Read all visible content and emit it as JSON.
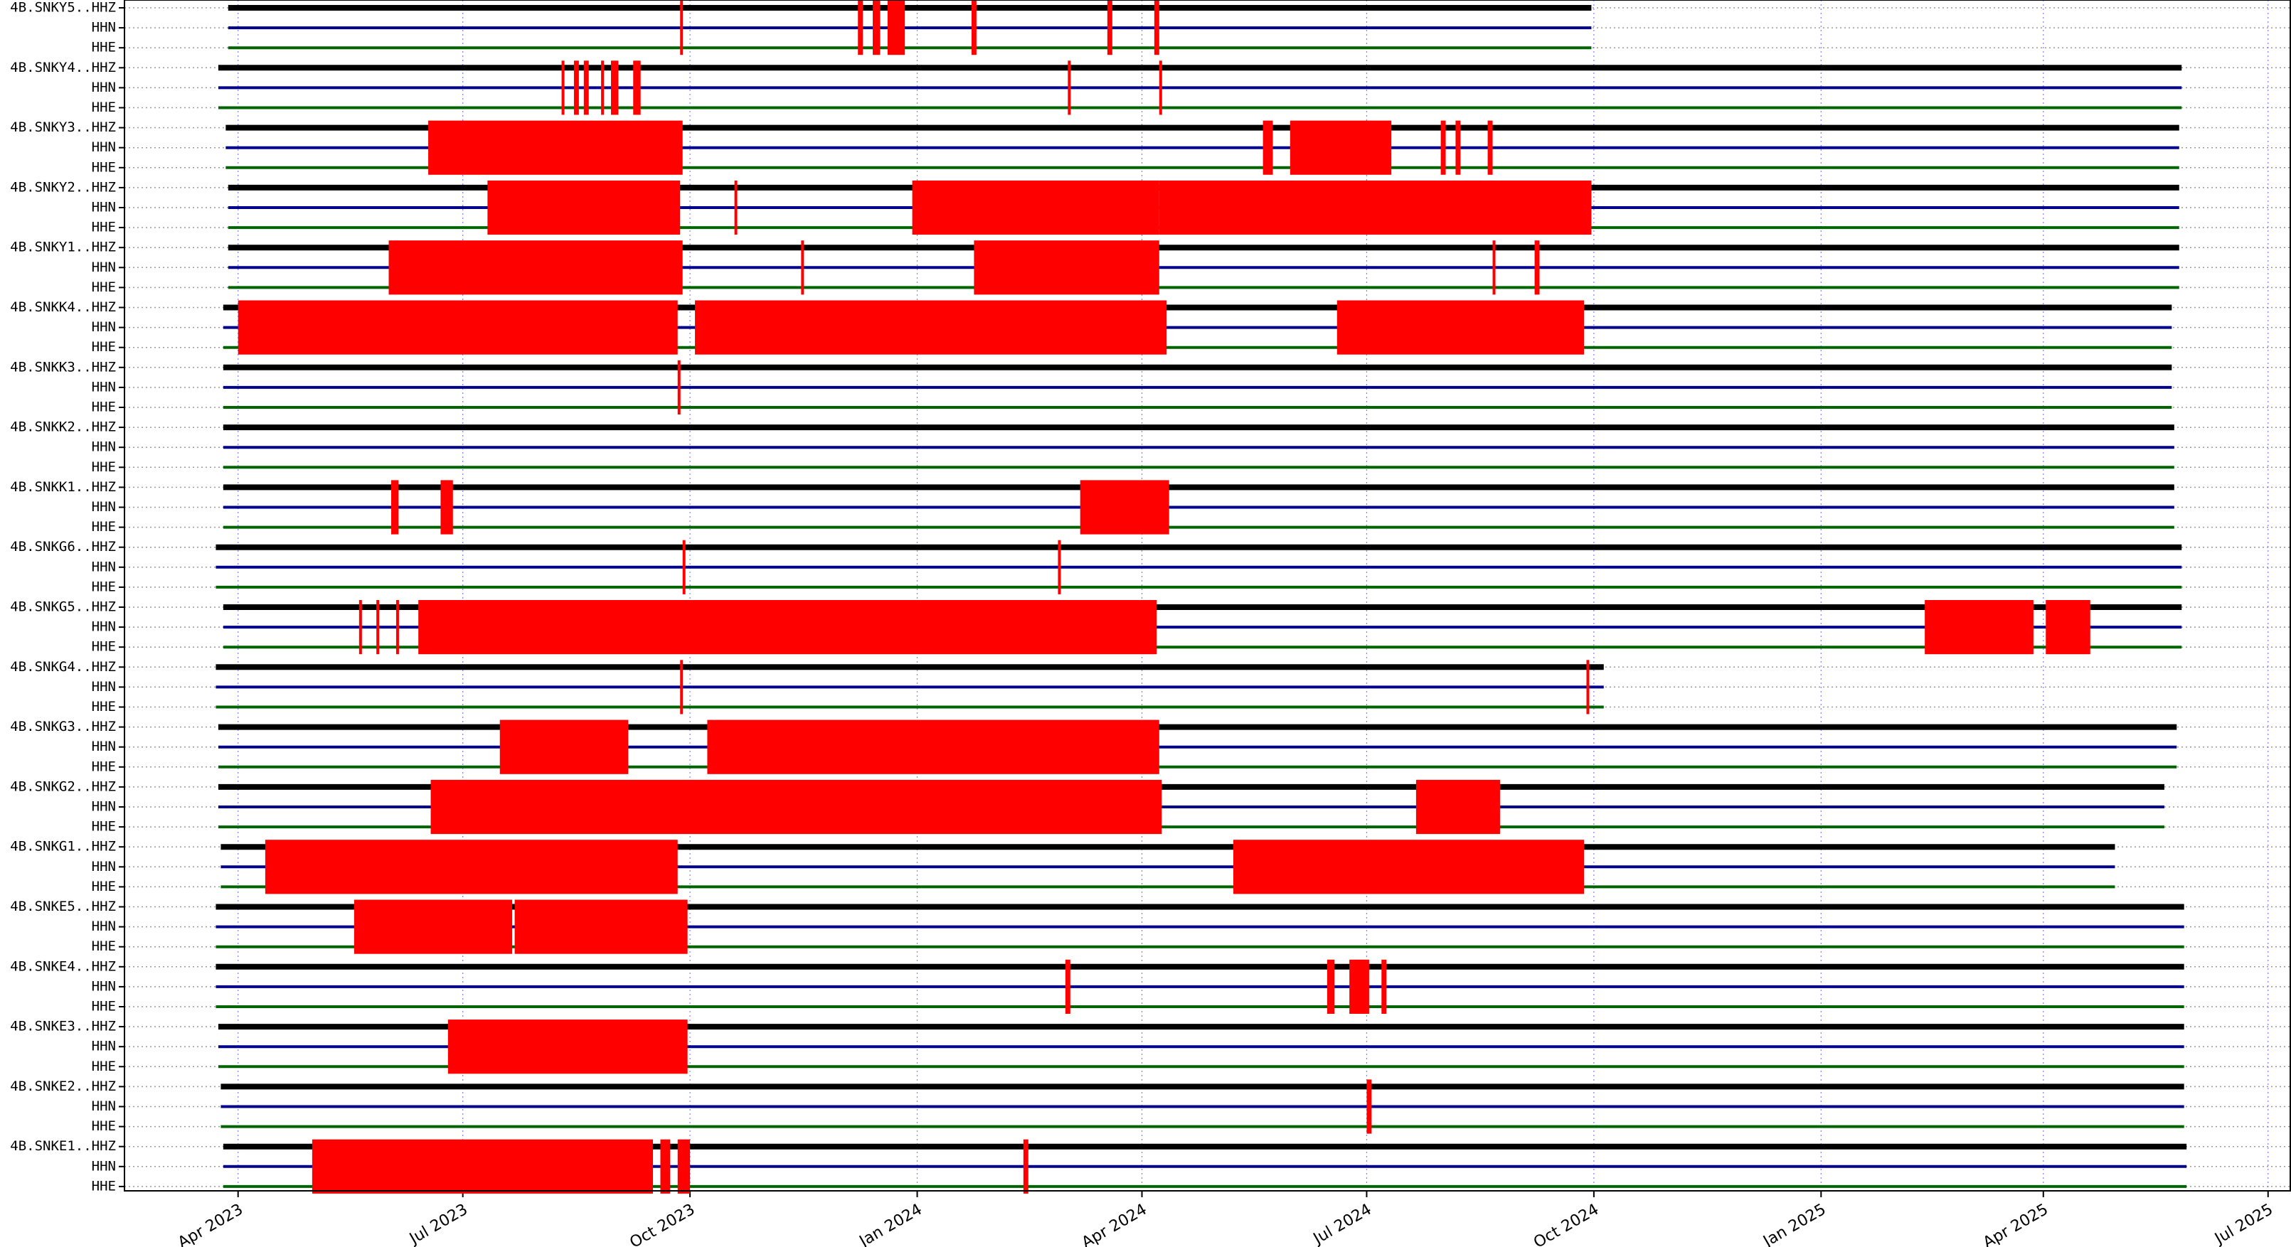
{
  "chart_data": {
    "type": "gantt",
    "title": "",
    "xlabel": "",
    "ylabel": "",
    "grid": true,
    "x_axis": {
      "range": [
        "2023-02-14",
        "2025-07-10"
      ],
      "ticks": [
        {
          "date": "2023-04-01",
          "label": "Apr 2023"
        },
        {
          "date": "2023-07-01",
          "label": "Jul 2023"
        },
        {
          "date": "2023-10-01",
          "label": "Oct 2023"
        },
        {
          "date": "2024-01-01",
          "label": "Jan 2024"
        },
        {
          "date": "2024-04-01",
          "label": "Apr 2024"
        },
        {
          "date": "2024-07-01",
          "label": "Jul 2024"
        },
        {
          "date": "2024-10-01",
          "label": "Oct 2024"
        },
        {
          "date": "2025-01-01",
          "label": "Jan 2025"
        },
        {
          "date": "2025-04-01",
          "label": "Apr 2025"
        },
        {
          "date": "2025-07-01",
          "label": "Jul 2025"
        }
      ]
    },
    "channel_colors": {
      "HHZ": "#000000",
      "HHN": "#00008b",
      "HHE": "#006400"
    },
    "gap_color": "#ff0000",
    "stations": [
      {
        "label": "4B.SNKY5..HHZ",
        "start": "2023-03-28",
        "end": "2024-09-30",
        "gaps": [
          [
            "2023-09-27",
            "2023-09-28"
          ],
          [
            "2023-12-08",
            "2023-12-10"
          ],
          [
            "2023-12-14",
            "2023-12-17"
          ],
          [
            "2023-12-20",
            "2023-12-27"
          ],
          [
            "2024-01-23",
            "2024-01-25"
          ],
          [
            "2024-03-18",
            "2024-03-20"
          ],
          [
            "2024-04-06",
            "2024-04-08"
          ]
        ]
      },
      {
        "label": "4B.SNKY4..HHZ",
        "start": "2023-03-24",
        "end": "2025-05-27",
        "gaps": [
          [
            "2023-08-10",
            "2023-08-11"
          ],
          [
            "2023-08-15",
            "2023-08-17"
          ],
          [
            "2023-08-19",
            "2023-08-21"
          ],
          [
            "2023-08-26",
            "2023-08-27"
          ],
          [
            "2023-08-30",
            "2023-09-02"
          ],
          [
            "2023-09-08",
            "2023-09-11"
          ],
          [
            "2024-03-02",
            "2024-03-03"
          ],
          [
            "2024-04-08",
            "2024-04-09"
          ]
        ]
      },
      {
        "label": "4B.SNKY3..HHZ",
        "start": "2023-03-27",
        "end": "2025-05-26",
        "gaps": [
          [
            "2023-06-17",
            "2023-09-28"
          ],
          [
            "2024-05-20",
            "2024-05-24"
          ],
          [
            "2024-05-31",
            "2024-07-11"
          ],
          [
            "2024-07-31",
            "2024-08-02"
          ],
          [
            "2024-08-06",
            "2024-08-08"
          ],
          [
            "2024-08-19",
            "2024-08-21"
          ]
        ]
      },
      {
        "label": "4B.SNKY2..HHZ",
        "start": "2023-03-28",
        "end": "2025-05-26",
        "gaps": [
          [
            "2023-07-11",
            "2023-09-27"
          ],
          [
            "2023-12-30",
            "2024-04-08"
          ],
          [
            "2024-04-08",
            "2024-09-30"
          ],
          [
            "2023-10-19",
            "2023-10-20"
          ]
        ]
      },
      {
        "label": "4B.SNKY1..HHZ",
        "start": "2023-03-28",
        "end": "2025-05-26",
        "gaps": [
          [
            "2023-06-01",
            "2023-09-28"
          ],
          [
            "2023-11-15",
            "2023-11-16"
          ],
          [
            "2024-01-24",
            "2024-04-08"
          ],
          [
            "2024-08-21",
            "2024-08-22"
          ],
          [
            "2024-09-07",
            "2024-09-09"
          ]
        ]
      },
      {
        "label": "4B.SNKK4..HHZ",
        "start": "2023-03-26",
        "end": "2025-05-23",
        "gaps": [
          [
            "2023-04-01",
            "2023-09-26"
          ],
          [
            "2023-10-03",
            "2024-04-11"
          ],
          [
            "2024-06-19",
            "2024-09-27"
          ]
        ]
      },
      {
        "label": "4B.SNKK3..HHZ",
        "start": "2023-03-26",
        "end": "2025-05-23",
        "gaps": [
          [
            "2023-09-26",
            "2023-09-27"
          ]
        ]
      },
      {
        "label": "4B.SNKK2..HHZ",
        "start": "2023-03-26",
        "end": "2025-05-24",
        "gaps": []
      },
      {
        "label": "4B.SNKK1..HHZ",
        "start": "2023-03-26",
        "end": "2025-05-24",
        "gaps": [
          [
            "2023-06-02",
            "2023-06-05"
          ],
          [
            "2023-06-22",
            "2023-06-27"
          ],
          [
            "2024-03-07",
            "2024-04-12"
          ]
        ]
      },
      {
        "label": "4B.SNKG6..HHZ",
        "start": "2023-03-23",
        "end": "2025-05-27",
        "gaps": [
          [
            "2023-09-28",
            "2023-09-29"
          ],
          [
            "2024-02-27",
            "2024-02-28"
          ]
        ]
      },
      {
        "label": "4B.SNKG5..HHZ",
        "start": "2023-03-26",
        "end": "2025-05-27",
        "gaps": [
          [
            "2023-05-20",
            "2023-05-21"
          ],
          [
            "2023-05-27",
            "2023-05-28"
          ],
          [
            "2023-06-04",
            "2023-06-05"
          ],
          [
            "2023-06-13",
            "2024-04-07"
          ],
          [
            "2025-02-12",
            "2025-03-28"
          ],
          [
            "2025-04-02",
            "2025-04-20"
          ]
        ]
      },
      {
        "label": "4B.SNKG4..HHZ",
        "start": "2023-03-23",
        "end": "2024-10-05",
        "gaps": [
          [
            "2023-09-27",
            "2023-09-28"
          ],
          [
            "2024-09-28",
            "2024-09-29"
          ]
        ]
      },
      {
        "label": "4B.SNKG3..HHZ",
        "start": "2023-03-24",
        "end": "2025-05-25",
        "gaps": [
          [
            "2023-07-16",
            "2023-09-06"
          ],
          [
            "2023-10-08",
            "2024-04-08"
          ]
        ]
      },
      {
        "label": "4B.SNKG2..HHZ",
        "start": "2023-03-24",
        "end": "2025-05-20",
        "gaps": [
          [
            "2023-06-18",
            "2024-04-09"
          ],
          [
            "2024-07-21",
            "2024-08-24"
          ]
        ]
      },
      {
        "label": "4B.SNKG1..HHZ",
        "start": "2023-03-25",
        "end": "2025-04-30",
        "gaps": [
          [
            "2023-04-12",
            "2023-09-26"
          ],
          [
            "2024-05-08",
            "2024-09-27"
          ]
        ]
      },
      {
        "label": "4B.SNKE5..HHZ",
        "start": "2023-03-23",
        "end": "2025-05-28",
        "gaps": [
          [
            "2023-05-18",
            "2023-07-21"
          ],
          [
            "2023-07-22",
            "2023-09-30"
          ]
        ]
      },
      {
        "label": "4B.SNKE4..HHZ",
        "start": "2023-03-23",
        "end": "2025-05-28",
        "gaps": [
          [
            "2024-03-01",
            "2024-03-03"
          ],
          [
            "2024-06-15",
            "2024-06-18"
          ],
          [
            "2024-06-24",
            "2024-07-02"
          ],
          [
            "2024-07-07",
            "2024-07-09"
          ]
        ]
      },
      {
        "label": "4B.SNKE3..HHZ",
        "start": "2023-03-24",
        "end": "2025-05-28",
        "gaps": [
          [
            "2023-06-25",
            "2023-09-30"
          ]
        ]
      },
      {
        "label": "4B.SNKE2..HHZ",
        "start": "2023-03-25",
        "end": "2025-05-28",
        "gaps": [
          [
            "2024-07-01",
            "2024-07-03"
          ]
        ]
      },
      {
        "label": "4B.SNKE1..HHZ",
        "start": "2023-03-26",
        "end": "2025-05-29",
        "gaps": [
          [
            "2023-05-01",
            "2023-09-16"
          ],
          [
            "2023-09-19",
            "2023-09-23"
          ],
          [
            "2023-09-26",
            "2023-10-01"
          ],
          [
            "2024-02-13",
            "2024-02-15"
          ]
        ]
      }
    ]
  }
}
